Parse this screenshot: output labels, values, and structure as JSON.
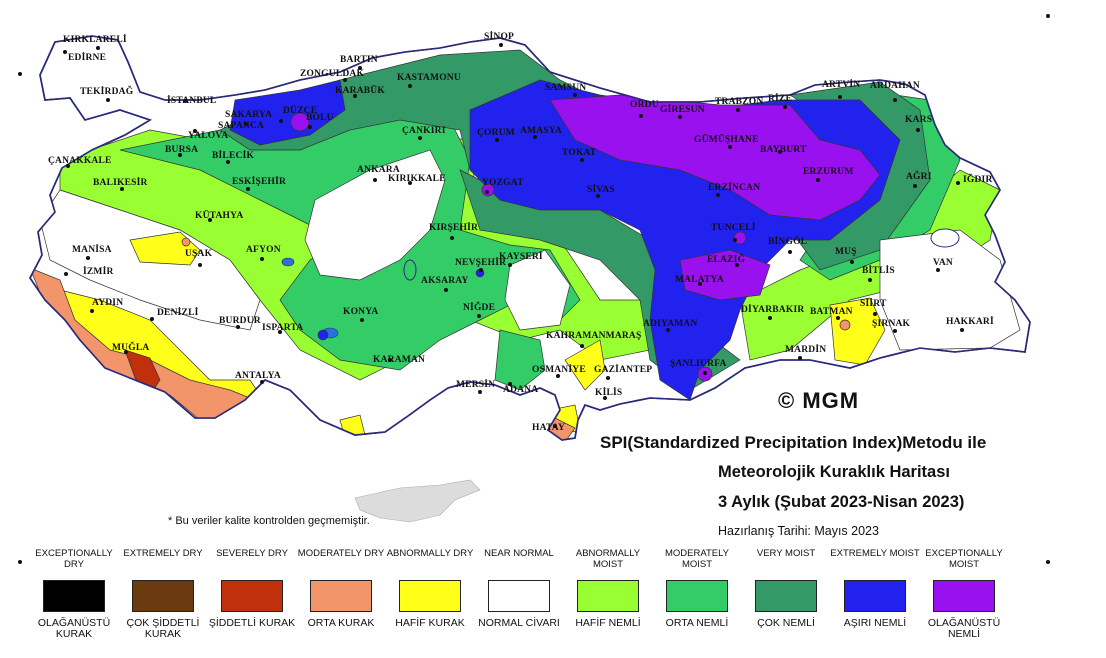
{
  "title": {
    "line1": "SPI(Standardized Precipitation Index)Metodu ile",
    "line2": "Meteorolojik Kuraklık Haritası",
    "line3": "3 Aylık (Şubat 2023-Nisan 2023)",
    "prepared": "Hazırlanış Tarihi: Mayıs 2023"
  },
  "copyright": "© MGM",
  "note": "* Bu veriler kalite kontrolden geçmemiştir.",
  "legend": [
    {
      "en": "EXCEPTIONALLY DRY",
      "tr": "OLAĞANÜSTÜ KURAK",
      "color": "#000000"
    },
    {
      "en": "EXTREMELY DRY",
      "tr": "ÇOK ŞİDDETLİ KURAK",
      "color": "#6b3a0e"
    },
    {
      "en": "SEVERELY DRY",
      "tr": "ŞİDDETLİ KURAK",
      "color": "#c0300c"
    },
    {
      "en": "MODERATELY DRY",
      "tr": "ORTA KURAK",
      "color": "#f2956a"
    },
    {
      "en": "ABNORMALLY DRY",
      "tr": "HAFİF KURAK",
      "color": "#ffff1a"
    },
    {
      "en": "NEAR NORMAL",
      "tr": "NORMAL CİVARI",
      "color": "#ffffff"
    },
    {
      "en": "ABNORMALLY MOIST",
      "tr": "HAFİF NEMLİ",
      "color": "#99ff33"
    },
    {
      "en": "MODERATELY MOIST",
      "tr": "ORTA NEMLİ",
      "color": "#33cc66"
    },
    {
      "en": "VERY MOIST",
      "tr": "ÇOK NEMLİ",
      "color": "#339966"
    },
    {
      "en": "EXTREMELY MOIST",
      "tr": "AŞIRI NEMLİ",
      "color": "#2222ee"
    },
    {
      "en": "EXCEPTIONALLY MOIST",
      "tr": "OLAĞANÜSTÜ NEMLİ",
      "color": "#9911ee"
    }
  ],
  "cities": [
    "KIRKLARELİ",
    "EDİRNE",
    "TEKİRDAĞ",
    "İSTANBUL",
    "ÇANAKKALE",
    "BALIKESİR",
    "YALOVA",
    "BURSA",
    "BİLECİK",
    "SAKARYA",
    "SAPANCA",
    "DÜZCE",
    "BOLU",
    "ZONGULDAK",
    "BARTIN",
    "KARABÜK",
    "KASTAMONU",
    "SİNOP",
    "SAMSUN",
    "ORDU",
    "GİRESUN",
    "TRABZON",
    "RİZE",
    "ARTVİN",
    "ARDAHAN",
    "KARS",
    "IĞDIR",
    "AĞRI",
    "ERZURUM",
    "BAYBURT",
    "GÜMÜŞHANE",
    "ERZİNCAN",
    "TOKAT",
    "AMASYA",
    "ÇORUM",
    "ÇANKIRI",
    "ANKARA",
    "KIRIKKALE",
    "YOZGAT",
    "SİVAS",
    "ESKİŞEHİR",
    "KÜTAHYA",
    "MANİSA",
    "UŞAK",
    "AFYON",
    "İZMİR",
    "AYDIN",
    "DENİZLİ",
    "MUĞLA",
    "BURDUR",
    "ISPARTA",
    "ANTALYA",
    "KONYA",
    "KARAMAN",
    "AKSARAY",
    "KIRŞEHİR",
    "NEVŞEHİR",
    "KAYSERİ",
    "NİĞDE",
    "MERSİN",
    "ADANA",
    "OSMANİYE",
    "KAHRAMANMARAŞ",
    "GAZİANTEP",
    "KİLİS",
    "HATAY",
    "ADIYAMAN",
    "MALATYA",
    "ELAZIĞ",
    "TUNCELİ",
    "BİNGÖL",
    "MUŞ",
    "BİTLİS",
    "VAN",
    "SİİRT",
    "BATMAN",
    "ŞIRNAK",
    "HAKKARİ",
    "MARDİN",
    "DİYARBAKIR",
    "ŞANLIURFA"
  ]
}
